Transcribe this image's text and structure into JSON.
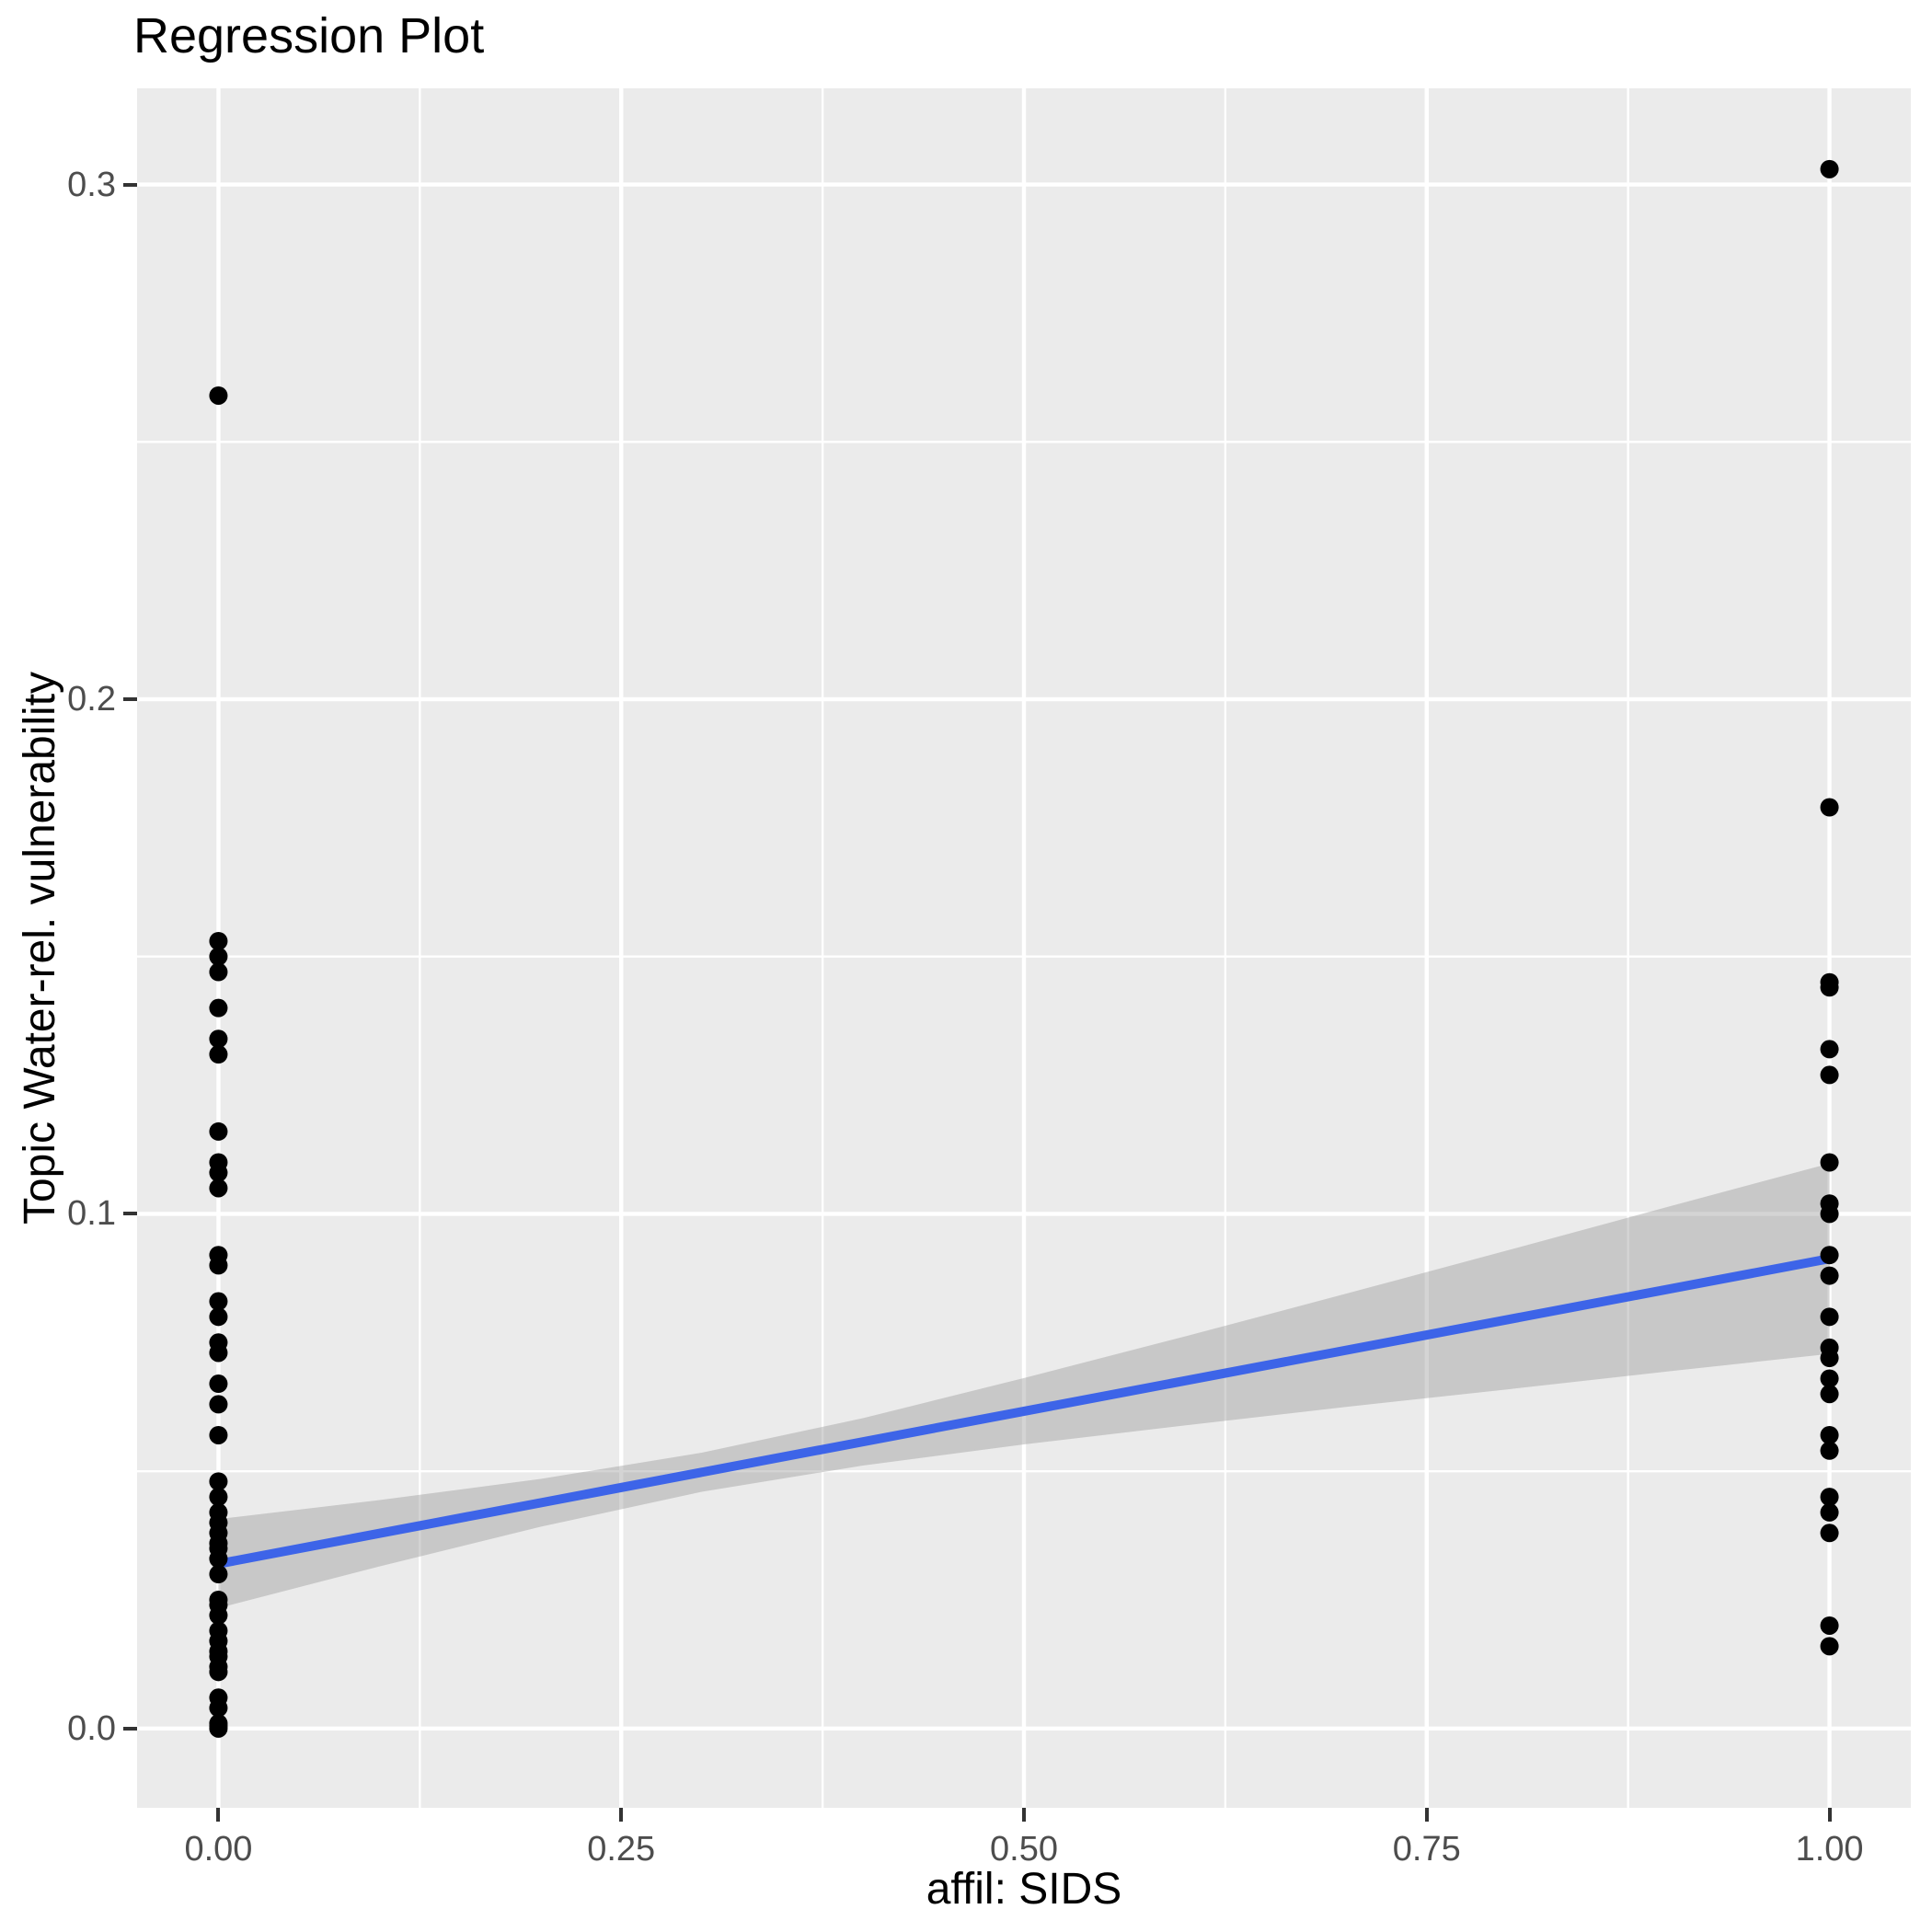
{
  "chart_data": {
    "type": "scatter",
    "title": "Regression Plot",
    "xlabel": "affil: SIDS",
    "ylabel": "Topic Water-rel. vulnerability",
    "xlim": [
      -0.0505,
      1.0505
    ],
    "ylim": [
      -0.0154,
      0.3187
    ],
    "grid": true,
    "legend_position": "none",
    "x_ticks": {
      "values": [
        0,
        0.25,
        0.5,
        0.75,
        1
      ],
      "labels": [
        "0.00",
        "0.25",
        "0.50",
        "0.75",
        "1.00"
      ]
    },
    "y_ticks": {
      "values": [
        0,
        0.1,
        0.2,
        0.3
      ],
      "labels": [
        "0.0",
        "0.1",
        "0.2",
        "0.3"
      ]
    },
    "x_minor": [
      0.125,
      0.375,
      0.625,
      0.875
    ],
    "y_minor": [
      0.05,
      0.15,
      0.25
    ],
    "series": [
      {
        "name": "observations-x0",
        "x_value": 0,
        "y": [
          0.259,
          0.153,
          0.15,
          0.147,
          0.14,
          0.134,
          0.131,
          0.116,
          0.11,
          0.108,
          0.105,
          0.092,
          0.09,
          0.083,
          0.08,
          0.075,
          0.073,
          0.067,
          0.063,
          0.057,
          0.048,
          0.045,
          0.042,
          0.04,
          0.038,
          0.036,
          0.035,
          0.033,
          0.03,
          0.025,
          0.024,
          0.022,
          0.019,
          0.017,
          0.015,
          0.014,
          0.012,
          0.011,
          0.006,
          0.004,
          0.001,
          0.0005,
          0.0
        ]
      },
      {
        "name": "observations-x1",
        "x_value": 1,
        "y": [
          0.303,
          0.179,
          0.145,
          0.144,
          0.132,
          0.127,
          0.11,
          0.102,
          0.1,
          0.092,
          0.088,
          0.08,
          0.074,
          0.072,
          0.068,
          0.065,
          0.057,
          0.054,
          0.045,
          0.042,
          0.038,
          0.02,
          0.016
        ]
      }
    ],
    "regression_line": {
      "x_start": 0,
      "y_start": 0.032,
      "x_end": 1,
      "y_end": 0.0913,
      "color": "#3D64E8"
    },
    "confidence_band": {
      "x": [
        0,
        0.1,
        0.2,
        0.3,
        0.4,
        0.5,
        0.6,
        0.7,
        0.8,
        0.9,
        1.0
      ],
      "upper": [
        0.0407,
        0.0444,
        0.0485,
        0.0536,
        0.0603,
        0.0681,
        0.0762,
        0.0845,
        0.0929,
        0.1014,
        0.1098
      ],
      "lower": [
        0.0234,
        0.0315,
        0.0392,
        0.046,
        0.0511,
        0.0552,
        0.0589,
        0.0625,
        0.0659,
        0.0694,
        0.0728
      ],
      "fill": "#999999",
      "opacity": 0.42
    },
    "colors": {
      "panel_background": "#EBEBEB",
      "gridline": "#FFFFFF",
      "point": "#000000",
      "tick_text": "#4D4D4D",
      "axis_title_text": "#000000",
      "tick_mark": "#333333",
      "smooth_line": "#3D64E8"
    }
  }
}
